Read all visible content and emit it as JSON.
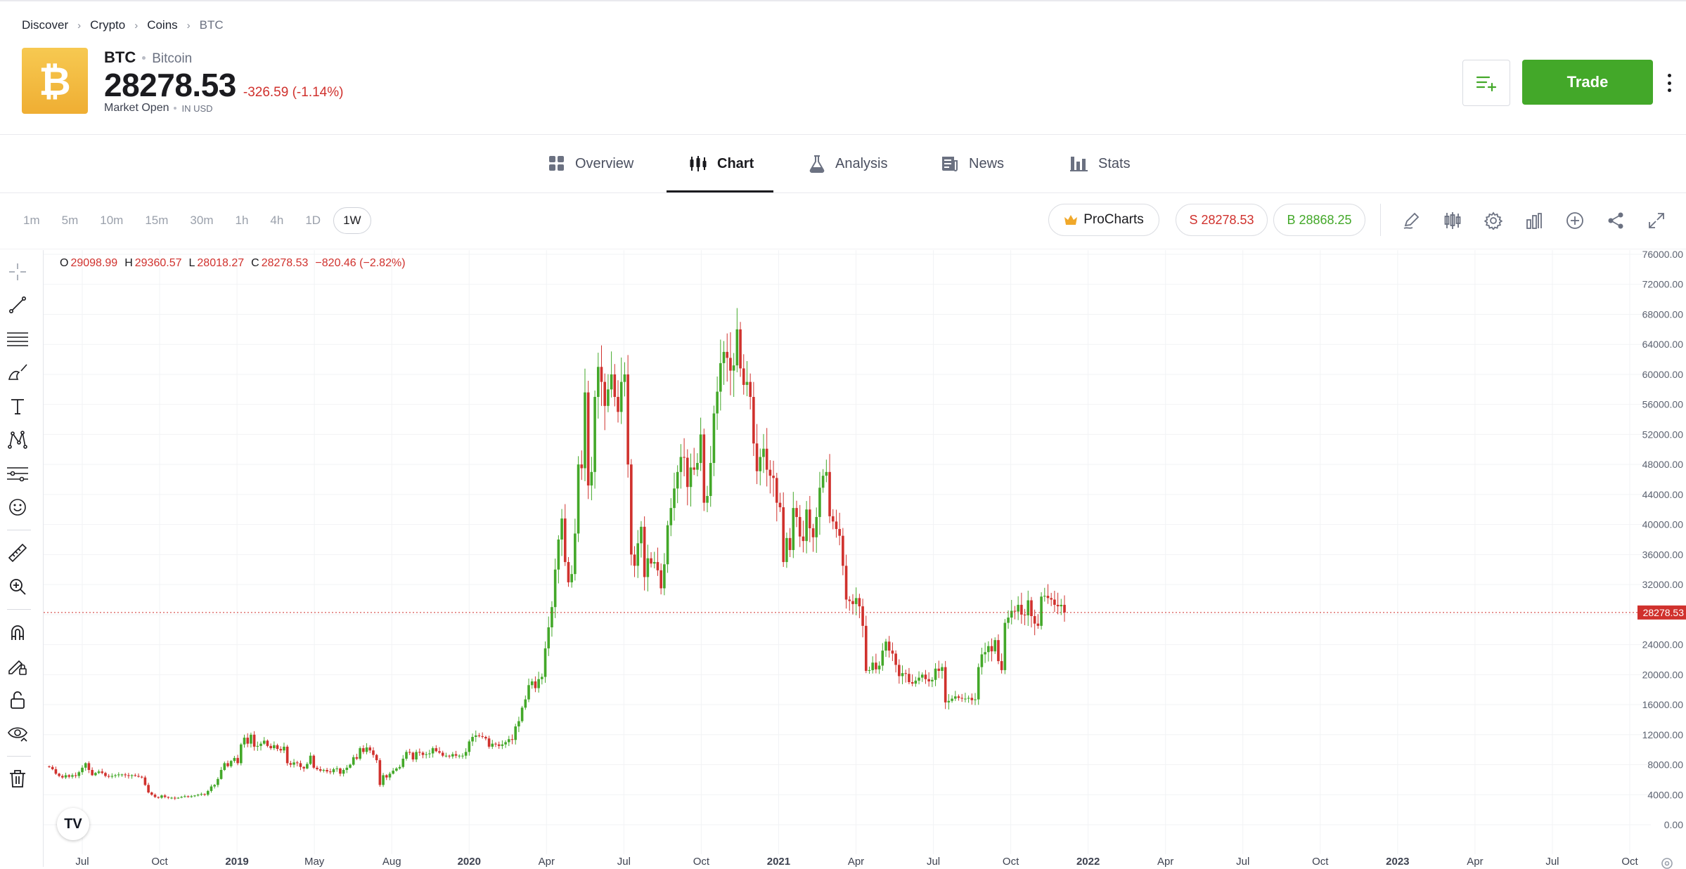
{
  "breadcrumb": {
    "items": [
      "Discover",
      "Crypto",
      "Coins",
      "BTC"
    ]
  },
  "header": {
    "logo_glyph": "₿",
    "symbol": "BTC",
    "name": "Bitcoin",
    "price": "28278.53",
    "change": "-326.59 (-1.14%)",
    "status": "Market Open",
    "currency": "IN USD",
    "trade_label": "Trade",
    "accent": "#43a829",
    "negative": "#d0312d"
  },
  "tabs": [
    {
      "label": "Overview",
      "icon": "grid-icon"
    },
    {
      "label": "Chart",
      "icon": "candlestick-icon",
      "active": true
    },
    {
      "label": "Analysis",
      "icon": "flask-icon"
    },
    {
      "label": "News",
      "icon": "newspaper-icon"
    },
    {
      "label": "Stats",
      "icon": "bar-chart-icon"
    }
  ],
  "toolbar": {
    "intervals": [
      "1m",
      "5m",
      "10m",
      "15m",
      "30m",
      "1h",
      "4h",
      "1D",
      "1W"
    ],
    "active_interval": "1W",
    "procharts_label": "ProCharts",
    "sell_label": "S 28278.53",
    "buy_label": "B 28868.25",
    "icons": [
      "pencil-icon",
      "candles-icon",
      "settings-icon",
      "indicators-icon",
      "add-circle-icon",
      "share-icon",
      "expand-icon"
    ]
  },
  "left_tools": [
    "crosshair-icon",
    "trend-line-icon",
    "parallel-lines-icon",
    "brush-icon",
    "text-icon",
    "pattern-icon",
    "forecast-icon",
    "emoji-icon",
    "ruler-icon",
    "zoom-in-icon",
    "magnet-icon",
    "lock-drawing-icon",
    "unlock-icon",
    "eye-icon",
    "trash-icon"
  ],
  "ohlc": {
    "o_label": "O",
    "o": "29098.99",
    "h_label": "H",
    "h": "29360.57",
    "l_label": "L",
    "l": "28018.27",
    "c_label": "C",
    "c": "28278.53",
    "chg": "−820.46 (−2.82%)"
  },
  "tv_logo": "TV",
  "chart_data": {
    "type": "candlestick",
    "interval": "1W",
    "current_price_label": "28278.53",
    "ylim": [
      0,
      76000
    ],
    "yticks": [
      "0.00",
      "4000.00",
      "8000.00",
      "12000.00",
      "16000.00",
      "20000.00",
      "24000.00",
      "28000.00",
      "32000.00",
      "36000.00",
      "40000.00",
      "44000.00",
      "48000.00",
      "52000.00",
      "56000.00",
      "60000.00",
      "64000.00",
      "68000.00",
      "72000.00",
      "76000.00"
    ],
    "x_ticks": [
      {
        "label": "Jul",
        "bold": false
      },
      {
        "label": "Oct",
        "bold": false
      },
      {
        "label": "2019",
        "bold": true
      },
      {
        "label": "May",
        "bold": false
      },
      {
        "label": "Aug",
        "bold": false
      },
      {
        "label": "2020",
        "bold": true
      },
      {
        "label": "Apr",
        "bold": false
      },
      {
        "label": "Jul",
        "bold": false
      },
      {
        "label": "Oct",
        "bold": false
      },
      {
        "label": "2021",
        "bold": true
      },
      {
        "label": "Apr",
        "bold": false
      },
      {
        "label": "Jul",
        "bold": false
      },
      {
        "label": "Oct",
        "bold": false
      },
      {
        "label": "2022",
        "bold": true
      },
      {
        "label": "Apr",
        "bold": false
      },
      {
        "label": "Jul",
        "bold": false
      },
      {
        "label": "Oct",
        "bold": false
      },
      {
        "label": "2023",
        "bold": true
      },
      {
        "label": "Apr",
        "bold": false
      },
      {
        "label": "Jul",
        "bold": false
      },
      {
        "label": "Oct",
        "bold": false
      }
    ],
    "closes": [
      7700,
      7400,
      6800,
      6500,
      6300,
      6600,
      6400,
      6600,
      6500,
      7000,
      7600,
      8200,
      7300,
      6600,
      6900,
      7100,
      6900,
      6500,
      6400,
      6500,
      6600,
      6700,
      6700,
      6600,
      6500,
      6600,
      6500,
      6400,
      6300,
      5300,
      4300,
      4000,
      3700,
      3600,
      3900,
      3700,
      3600,
      3600,
      3500,
      3600,
      3700,
      3800,
      3700,
      3800,
      3900,
      4000,
      4100,
      4000,
      4500,
      5100,
      5300,
      6100,
      7300,
      8200,
      7800,
      8500,
      8900,
      8200,
      10700,
      11600,
      10800,
      12000,
      10400,
      10500,
      10800,
      11200,
      10500,
      10200,
      10600,
      10100,
      9900,
      10400,
      8200,
      8000,
      8300,
      8200,
      7700,
      7500,
      8100,
      9200,
      7600,
      7400,
      7200,
      7300,
      7100,
      7000,
      7400,
      7500,
      6800,
      7300,
      7600,
      8000,
      9000,
      8800,
      10200,
      9700,
      10300,
      9900,
      9300,
      8600,
      5300,
      6600,
      6300,
      6800,
      7200,
      7500,
      7700,
      8800,
      9700,
      9600,
      8700,
      9700,
      9600,
      9300,
      9400,
      9500,
      10200,
      9800,
      9600,
      9200,
      9200,
      9100,
      9400,
      9200,
      9200,
      9200,
      9700,
      11100,
      11700,
      11900,
      11800,
      11700,
      11500,
      10400,
      10800,
      10700,
      10500,
      10700,
      11000,
      11400,
      11300,
      13100,
      13800,
      15600,
      16700,
      18600,
      19100,
      18200,
      19400,
      19700,
      23500,
      26300,
      29000,
      34000,
      38000,
      40800,
      35000,
      32300,
      33400,
      38800,
      48000,
      47500,
      57600,
      45200,
      47000,
      57000,
      61000,
      59000,
      55800,
      58000,
      60000,
      57000,
      55000,
      59000,
      60000,
      48000,
      36000,
      34500,
      37500,
      39700,
      33000,
      35500,
      34800,
      35000,
      33900,
      31500,
      34700,
      39900,
      42200,
      44800,
      47000,
      49000,
      48900,
      45000,
      47600,
      47300,
      48200,
      52000,
      42900,
      43800,
      48200,
      54800,
      57700,
      61500,
      63000,
      62200,
      60500,
      61200,
      66000,
      60800,
      58600,
      59000,
      57000,
      50800,
      47100,
      49000,
      50100,
      47300,
      46500,
      46200,
      42900,
      42300,
      35000,
      38200,
      36600,
      42200,
      41000,
      38400,
      37800,
      42000,
      39500,
      38300,
      41000,
      44900,
      46500,
      47000,
      41100,
      40400,
      39400,
      38500,
      34500,
      30000,
      29800,
      29400,
      30200,
      29100,
      26500,
      20500,
      20600,
      21600,
      20700,
      21200,
      23200,
      24400,
      23200,
      22800,
      21300,
      19800,
      20200,
      20100,
      19000,
      18800,
      19200,
      19600,
      20000,
      19400,
      19100,
      19300,
      20800,
      20500,
      21000,
      16300,
      16500,
      16800,
      17100,
      16900,
      16800,
      16800,
      16900,
      16600,
      16700,
      21000,
      22700,
      23000,
      23800,
      23100,
      24600,
      21800,
      20600,
      26900,
      27600,
      28500,
      28400,
      29300,
      28000,
      27900,
      29900,
      27800,
      26800,
      26500,
      30400,
      30500,
      30200,
      30000,
      29300,
      29100,
      29300,
      28278
    ]
  }
}
